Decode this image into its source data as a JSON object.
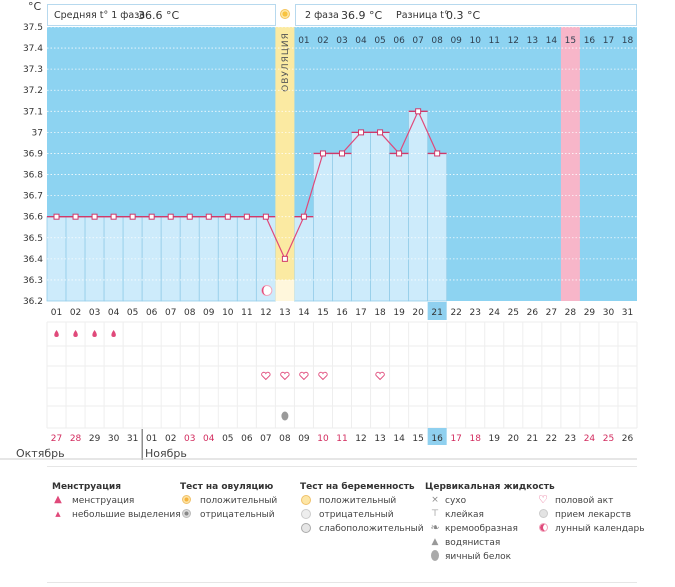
{
  "header": {
    "unit": "°C",
    "phase1_label": "Средняя t° 1 фаза",
    "phase1_value": "36.6 °C",
    "phase2_label": "2 фаза",
    "phase2_value": "36.9 °C",
    "diff_label": "Разница t°",
    "diff_value": "0.3 °C"
  },
  "chart_data": {
    "type": "line",
    "title": "",
    "xlabel": "",
    "ylabel": "°C",
    "ylim": [
      36.2,
      37.5
    ],
    "y_ticks": [
      "37.5",
      "37.4",
      "37.3",
      "37.2",
      "37.1",
      "37",
      "36.9",
      "36.8",
      "36.7",
      "36.6",
      "36.5",
      "36.4",
      "36.3",
      "36.2"
    ],
    "cycle_days": [
      "01",
      "02",
      "03",
      "04",
      "05",
      "06",
      "07",
      "08",
      "09",
      "10",
      "11",
      "12",
      "13",
      "14",
      "15",
      "16",
      "17",
      "18",
      "19",
      "20",
      "21",
      "22",
      "23",
      "24",
      "25",
      "26",
      "27",
      "28",
      "29",
      "30",
      "31"
    ],
    "phase2_days": [
      "01",
      "02",
      "03",
      "04",
      "05",
      "06",
      "07",
      "08",
      "09",
      "10",
      "11",
      "12",
      "13",
      "14",
      "15",
      "16",
      "17",
      "18"
    ],
    "current_cycle_day": "21",
    "ovulation_day_index": 12,
    "ovulation_label": "ОВУЛЯЦИЯ",
    "highlight_phase2_day": "15",
    "temperatures": [
      36.6,
      36.6,
      36.6,
      36.6,
      36.6,
      36.6,
      36.6,
      36.6,
      36.6,
      36.6,
      36.6,
      36.6,
      36.4,
      36.6,
      36.9,
      36.9,
      37.0,
      37.0,
      36.9,
      37.1,
      36.9
    ],
    "calendar_days": [
      "27",
      "28",
      "29",
      "30",
      "31",
      "01",
      "02",
      "03",
      "04",
      "05",
      "06",
      "07",
      "08",
      "09",
      "10",
      "11",
      "12",
      "13",
      "14",
      "15",
      "16",
      "17",
      "18",
      "19",
      "20",
      "21",
      "22",
      "23",
      "24",
      "25",
      "26"
    ],
    "calendar_red": [
      true,
      true,
      false,
      false,
      false,
      false,
      false,
      true,
      true,
      false,
      false,
      false,
      false,
      false,
      true,
      true,
      false,
      false,
      false,
      false,
      false,
      true,
      true,
      false,
      false,
      false,
      false,
      false,
      true,
      true,
      false
    ],
    "today_calendar_day": "16",
    "month_prev": "Октябрь",
    "month_next": "Ноябрь",
    "menstruation_days": [
      1,
      2,
      3,
      4
    ],
    "intercourse_days": [
      12,
      13,
      14,
      15,
      18
    ],
    "ovulation_test_negative_day": 13
  },
  "legend": {
    "menstruation": {
      "title": "Менструация",
      "items": [
        "менструация",
        "небольшие выделения"
      ]
    },
    "ovulation_test": {
      "title": "Тест на овуляцию",
      "items": [
        "положительный",
        "отрицательный"
      ]
    },
    "pregnancy_test": {
      "title": "Тест на беременность",
      "items": [
        "положительный",
        "отрицательный",
        "слабоположительный"
      ]
    },
    "cervical_fluid": {
      "title": "Цервикальная жидкость",
      "items": [
        "сухо",
        "клейкая",
        "кремообразная",
        "водянистая",
        "яичный белок"
      ]
    },
    "other": {
      "items": [
        "половой акт",
        "прием лекарств",
        "лунный календарь"
      ]
    }
  },
  "colors": {
    "background_sky": "#8dd3f1",
    "bar_fill": "#cdebfb",
    "bar_stroke": "#95cde9",
    "ovulation_band": "#fbeaa2",
    "highlight_day": "#f7b6c9",
    "line": "#e0497a",
    "marker": "#d0396a",
    "today_cell": "#8fd0ef",
    "red_text": "#d22b5e"
  }
}
